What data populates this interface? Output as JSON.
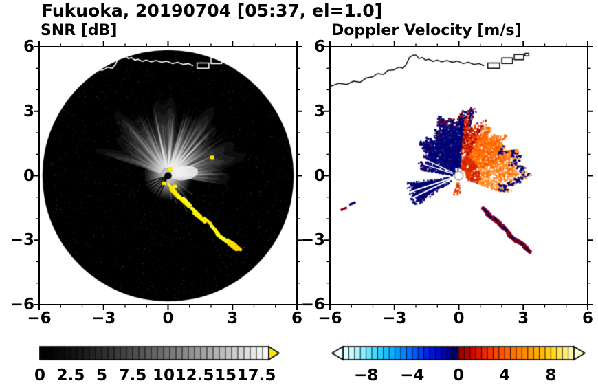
{
  "chart_data": {
    "type": "heatmap",
    "suptitle": "Fukuoka, 20190704 [05:37, el=1.0]",
    "station": "Fukuoka",
    "date": "20190704",
    "time": "05:37",
    "elevation": "1.0",
    "seed": 1234,
    "panels": [
      {
        "id": "snr",
        "title": "SNR [dB]",
        "xlim": [
          -6,
          6
        ],
        "ylim": [
          -6,
          6
        ],
        "xticks": [
          -6,
          -3,
          0,
          3,
          6
        ],
        "yticks": [
          6,
          3,
          0,
          -3,
          -6
        ],
        "xtick_labels": [
          "−6",
          "−3",
          "0",
          "3",
          "6"
        ],
        "ytick_labels": [
          "6",
          "3",
          "0",
          "−3",
          "−6"
        ],
        "minor_tick_step": 1,
        "colorbar": {
          "range": [
            0,
            18.5
          ],
          "segment": 0.5,
          "tick_values": [
            0,
            2.5,
            5,
            7.5,
            10,
            12.5,
            15,
            17.5
          ],
          "tick_labels": [
            "0",
            "2.5",
            "5",
            "7.5",
            "10",
            "12.5",
            "15",
            "17.5"
          ],
          "palette": "grayscale",
          "gamma": 1.35,
          "over_arrow_color": "#ffe600"
        },
        "features": {
          "disk_radius": 5.85,
          "disk_color": "#000000",
          "fan": {
            "az_min": -72,
            "az_max": 100,
            "r_typ": 2.6
          },
          "bright_streak_az": [
            348,
            5,
            18,
            31,
            44,
            58,
            67,
            78,
            88
          ],
          "black_ray_az": [
            204,
            214,
            223,
            232,
            242,
            252
          ],
          "south_streak_az": [
            128,
            140,
            152,
            163,
            172
          ],
          "yellow_color": "#ffee00",
          "yellow_spots": [
            [
              2.05,
              0.85
            ],
            [
              0.1,
              0.32
            ],
            [
              -0.18,
              -0.35
            ],
            [
              0.32,
              -0.5
            ]
          ]
        }
      },
      {
        "id": "doppler",
        "title": "Doppler Velocity [m/s]",
        "xlim": [
          -6,
          6
        ],
        "ylim": [
          -6,
          6
        ],
        "xticks": [
          -6,
          -3,
          0,
          3,
          6
        ],
        "yticks": [
          6,
          3,
          0,
          -3,
          -6
        ],
        "xtick_labels": [
          "−6",
          "−3",
          "0",
          "3",
          "6"
        ],
        "ytick_labels": [
          "6",
          "3",
          "0",
          "−3",
          "−6"
        ],
        "minor_tick_step": 1,
        "colorbar": {
          "range": [
            -10,
            10
          ],
          "segment": 0.5,
          "tick_values": [
            -8,
            -4,
            0,
            4,
            8
          ],
          "tick_labels": [
            "−8",
            "−4",
            "0",
            "4",
            "8"
          ],
          "stops": [
            [
              -10,
              "#eaffff"
            ],
            [
              -8.5,
              "#9ef2ff"
            ],
            [
              -7,
              "#2fd6ff"
            ],
            [
              -5.5,
              "#00a6ff"
            ],
            [
              -4,
              "#0064ff"
            ],
            [
              -2.5,
              "#0018e0"
            ],
            [
              -1,
              "#0000a0"
            ],
            [
              -0.02,
              "#00005c"
            ],
            [
              0.02,
              "#8f0000"
            ],
            [
              1,
              "#c80000"
            ],
            [
              2.5,
              "#f03000"
            ],
            [
              4,
              "#ff5c00"
            ],
            [
              5.5,
              "#ff8400"
            ],
            [
              7,
              "#ffb400"
            ],
            [
              8.5,
              "#ffdf30"
            ],
            [
              10,
              "#fff9c0"
            ]
          ],
          "under_arrow_color": "#f2ffff",
          "over_arrow_color": "#fffbd0"
        },
        "features": {
          "negative_color": "#000264",
          "positive_color": "#ff5f00",
          "maroon": "#8c0010",
          "neg_sector": {
            "az0": 283,
            "az1": 369,
            "r0": 0.32,
            "r_base": 1.5,
            "r_grow": 1.3
          },
          "neg_gap_az": [
            288,
            296
          ],
          "pos_sector": {
            "az0": 7,
            "az1": 108,
            "r0": 0.32,
            "r_base": 2.35,
            "bulge_az": 83,
            "bulge_amp": 0.5,
            "bulge_w": 16
          },
          "sw_wedge": {
            "az0": 237,
            "az1": 262,
            "r0": 0.38,
            "r1": 2.25,
            "gap_az": [
              244.5,
              251.5
            ]
          },
          "south_speckle": {
            "az0": 176,
            "az1": 198,
            "r0": 0.3,
            "r1": 0.9
          },
          "center_ring": 0.2,
          "chain_start_index": 5,
          "isolated_maroon": [
            [
              -5.35,
              -1.55
            ],
            [
              -4.95,
              -1.3
            ]
          ],
          "maroon_specks": [
            [
              0.1,
              2.8
            ],
            [
              0.45,
              2.62
            ],
            [
              -0.28,
              2.66
            ],
            [
              0.82,
              2.47
            ],
            [
              -0.6,
              2.5
            ]
          ]
        }
      }
    ],
    "map": {
      "coastline": [
        [
          -6.0,
          4.15
        ],
        [
          -5.6,
          4.3
        ],
        [
          -5.2,
          4.25
        ],
        [
          -4.9,
          4.4
        ],
        [
          -4.6,
          4.35
        ],
        [
          -4.3,
          4.55
        ],
        [
          -4.0,
          4.6
        ],
        [
          -3.8,
          4.75
        ],
        [
          -3.5,
          4.72
        ],
        [
          -3.3,
          4.9
        ],
        [
          -3.0,
          4.93
        ],
        [
          -2.8,
          5.05
        ],
        [
          -2.6,
          5.0
        ],
        [
          -2.45,
          5.18
        ],
        [
          -2.3,
          5.5
        ],
        [
          -2.15,
          5.6
        ],
        [
          -2.0,
          5.62
        ],
        [
          -1.85,
          5.45
        ],
        [
          -1.7,
          5.5
        ],
        [
          -1.55,
          5.38
        ],
        [
          -1.4,
          5.42
        ],
        [
          -1.2,
          5.32
        ],
        [
          -1.0,
          5.38
        ],
        [
          -0.8,
          5.3
        ],
        [
          -0.55,
          5.36
        ],
        [
          -0.3,
          5.28
        ],
        [
          -0.05,
          5.33
        ],
        [
          0.2,
          5.22
        ],
        [
          0.45,
          5.28
        ],
        [
          0.7,
          5.18
        ],
        [
          0.95,
          5.22
        ],
        [
          1.15,
          5.12
        ]
      ],
      "islands": [
        [
          1.35,
          5.0,
          0.55,
          0.25
        ],
        [
          2.0,
          5.22,
          0.5,
          0.26
        ],
        [
          2.58,
          5.4,
          0.44,
          0.24
        ],
        [
          3.08,
          5.58,
          0.18,
          0.12
        ]
      ],
      "coast_color_on_dark": "#ffffff",
      "coast_color_on_light": "#000000"
    },
    "chain": [
      [
        0.18,
        -0.55
      ],
      [
        0.4,
        -0.82
      ],
      [
        0.62,
        -1.02
      ],
      [
        0.85,
        -1.22
      ],
      [
        1.05,
        -1.45
      ],
      [
        1.32,
        -1.72
      ],
      [
        1.55,
        -1.92
      ],
      [
        1.8,
        -2.1
      ],
      [
        2.02,
        -2.32
      ],
      [
        2.22,
        -2.55
      ],
      [
        2.42,
        -2.8
      ],
      [
        2.62,
        -2.98
      ],
      [
        2.85,
        -3.1
      ],
      [
        3.05,
        -3.25
      ],
      [
        3.2,
        -3.38
      ]
    ]
  }
}
